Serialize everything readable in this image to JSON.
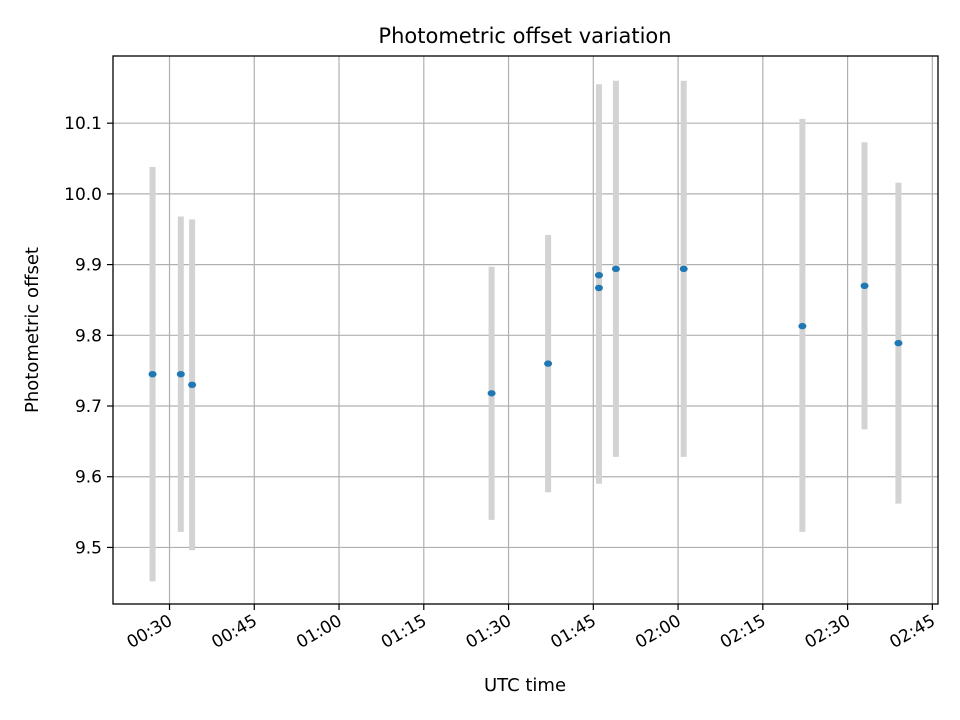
{
  "chart_data": {
    "type": "scatter",
    "title": "Photometric offset variation",
    "xlabel": "UTC time",
    "ylabel": "Photometric offset",
    "x_tick_labels": [
      "00:30",
      "00:45",
      "01:00",
      "01:15",
      "01:30",
      "01:45",
      "02:00",
      "02:15",
      "02:30",
      "02:45"
    ],
    "y_tick_labels": [
      "9.5",
      "9.6",
      "9.7",
      "9.8",
      "9.9",
      "10.0",
      "10.1"
    ],
    "y_ticks": [
      9.5,
      9.6,
      9.7,
      9.8,
      9.9,
      10.0,
      10.1
    ],
    "xlim": [
      "00:20",
      "02:46"
    ],
    "ylim": [
      9.42,
      10.195
    ],
    "grid": true,
    "marker_color": "#1f77b4",
    "errorbar_color": "#d3d3d3",
    "points": [
      {
        "time": "00:27",
        "y": 9.745,
        "yerr_low": 9.452,
        "yerr_high": 10.038
      },
      {
        "time": "00:32",
        "y": 9.745,
        "yerr_low": 9.522,
        "yerr_high": 9.968
      },
      {
        "time": "00:34",
        "y": 9.73,
        "yerr_low": 9.496,
        "yerr_high": 9.964
      },
      {
        "time": "01:27",
        "y": 9.718,
        "yerr_low": 9.539,
        "yerr_high": 9.897
      },
      {
        "time": "01:37",
        "y": 9.76,
        "yerr_low": 9.578,
        "yerr_high": 9.942
      },
      {
        "time": "01:46",
        "y": 9.867,
        "yerr_low": 9.59,
        "yerr_high": 10.144
      },
      {
        "time": "01:46",
        "y": 9.885,
        "yerr_low": 9.615,
        "yerr_high": 10.155
      },
      {
        "time": "01:49",
        "y": 9.894,
        "yerr_low": 9.628,
        "yerr_high": 10.16
      },
      {
        "time": "02:01",
        "y": 9.894,
        "yerr_low": 9.628,
        "yerr_high": 10.16
      },
      {
        "time": "02:22",
        "y": 9.813,
        "yerr_low": 9.522,
        "yerr_high": 10.106
      },
      {
        "time": "02:33",
        "y": 9.87,
        "yerr_low": 9.667,
        "yerr_high": 10.073
      },
      {
        "time": "02:39",
        "y": 9.789,
        "yerr_low": 9.562,
        "yerr_high": 10.016
      }
    ]
  }
}
